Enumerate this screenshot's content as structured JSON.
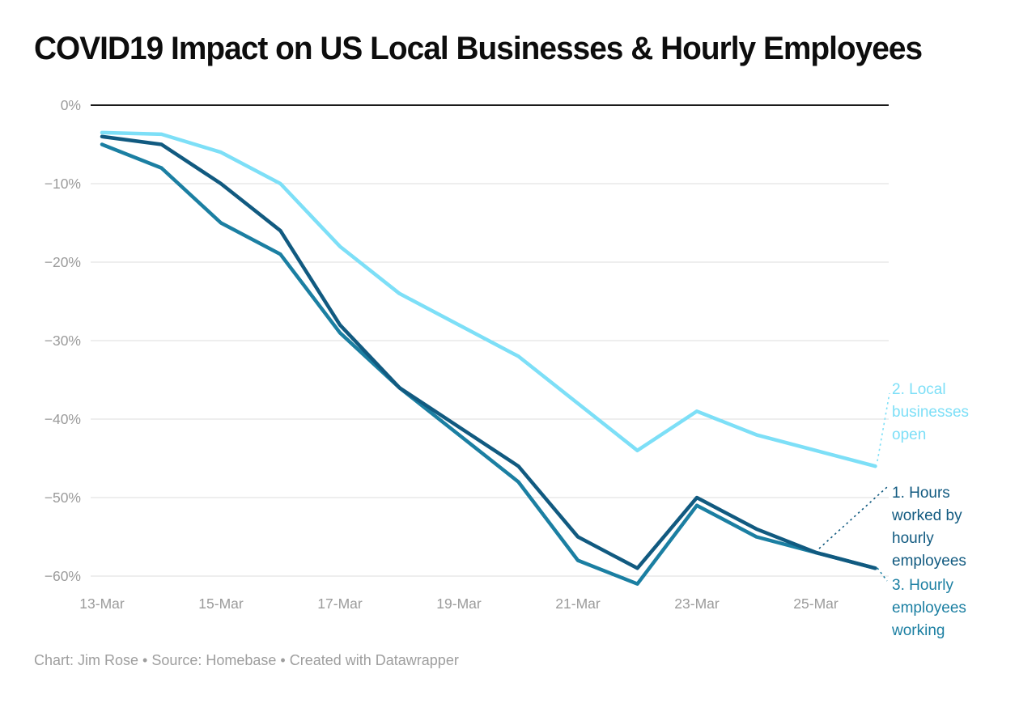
{
  "title": "COVID19 Impact on US Local Businesses & Hourly Employees",
  "footer": "Chart: Jim Rose • Source: Homebase • Created with Datawrapper",
  "colors": {
    "background": "#ffffff",
    "title_text": "#0d0d0d",
    "axis_text": "#9b9b9b",
    "footer_text": "#9e9e9e",
    "gridline": "#dcdcdc",
    "zero_line": "#1a1a1a",
    "series_1_navy": "#115a80",
    "series_2_lightblue": "#7ddff7",
    "series_3_teal": "#1b7fa2"
  },
  "chart_data": {
    "type": "line",
    "title": "COVID19 Impact on US Local Businesses & Hourly Employees",
    "x": [
      "13-Mar",
      "14-Mar",
      "15-Mar",
      "16-Mar",
      "17-Mar",
      "18-Mar",
      "19-Mar",
      "20-Mar",
      "21-Mar",
      "22-Mar",
      "23-Mar",
      "24-Mar",
      "25-Mar",
      "26-Mar"
    ],
    "x_tick_labels_shown": [
      "13-Mar",
      "15-Mar",
      "17-Mar",
      "19-Mar",
      "21-Mar",
      "23-Mar",
      "25-Mar"
    ],
    "y_tick_labels": [
      "0%",
      "−10%",
      "−20%",
      "−30%",
      "−40%",
      "−50%",
      "−60%"
    ],
    "y_tick_values": [
      0,
      -10,
      -20,
      -30,
      -40,
      -50,
      -60
    ],
    "ylim": [
      -62,
      0
    ],
    "unit": "percent change",
    "grid": "horizontal gridlines on, zero baseline emphasized",
    "legend_position": "direct labels right of plot with dotted connectors",
    "series": [
      {
        "id": 1,
        "name": "1. Hours worked by hourly employees",
        "label_display": "1. Hours\nworked by\nhourly\nemployees",
        "color": "#115a80",
        "values": [
          -4,
          -5,
          -10,
          -16,
          -28,
          -36,
          -41,
          -46,
          -55,
          -59,
          -50,
          -54,
          -57,
          -59
        ]
      },
      {
        "id": 2,
        "name": "2. Local businesses open",
        "label_display": "2. Local\nbusinesses\nopen",
        "color": "#7ddff7",
        "values": [
          -3.5,
          -3.7,
          -6,
          -10,
          -18,
          -24,
          -28,
          -32,
          -38,
          -44,
          -39,
          -42,
          -44,
          -46
        ]
      },
      {
        "id": 3,
        "name": "3. Hourly employees working",
        "label_display": "3. Hourly\nemployees\nworking",
        "color": "#1b7fa2",
        "values": [
          -5,
          -8,
          -15,
          -19,
          -29,
          -36,
          -42,
          -48,
          -58,
          -61,
          -51,
          -55,
          -57,
          -59
        ]
      }
    ]
  }
}
